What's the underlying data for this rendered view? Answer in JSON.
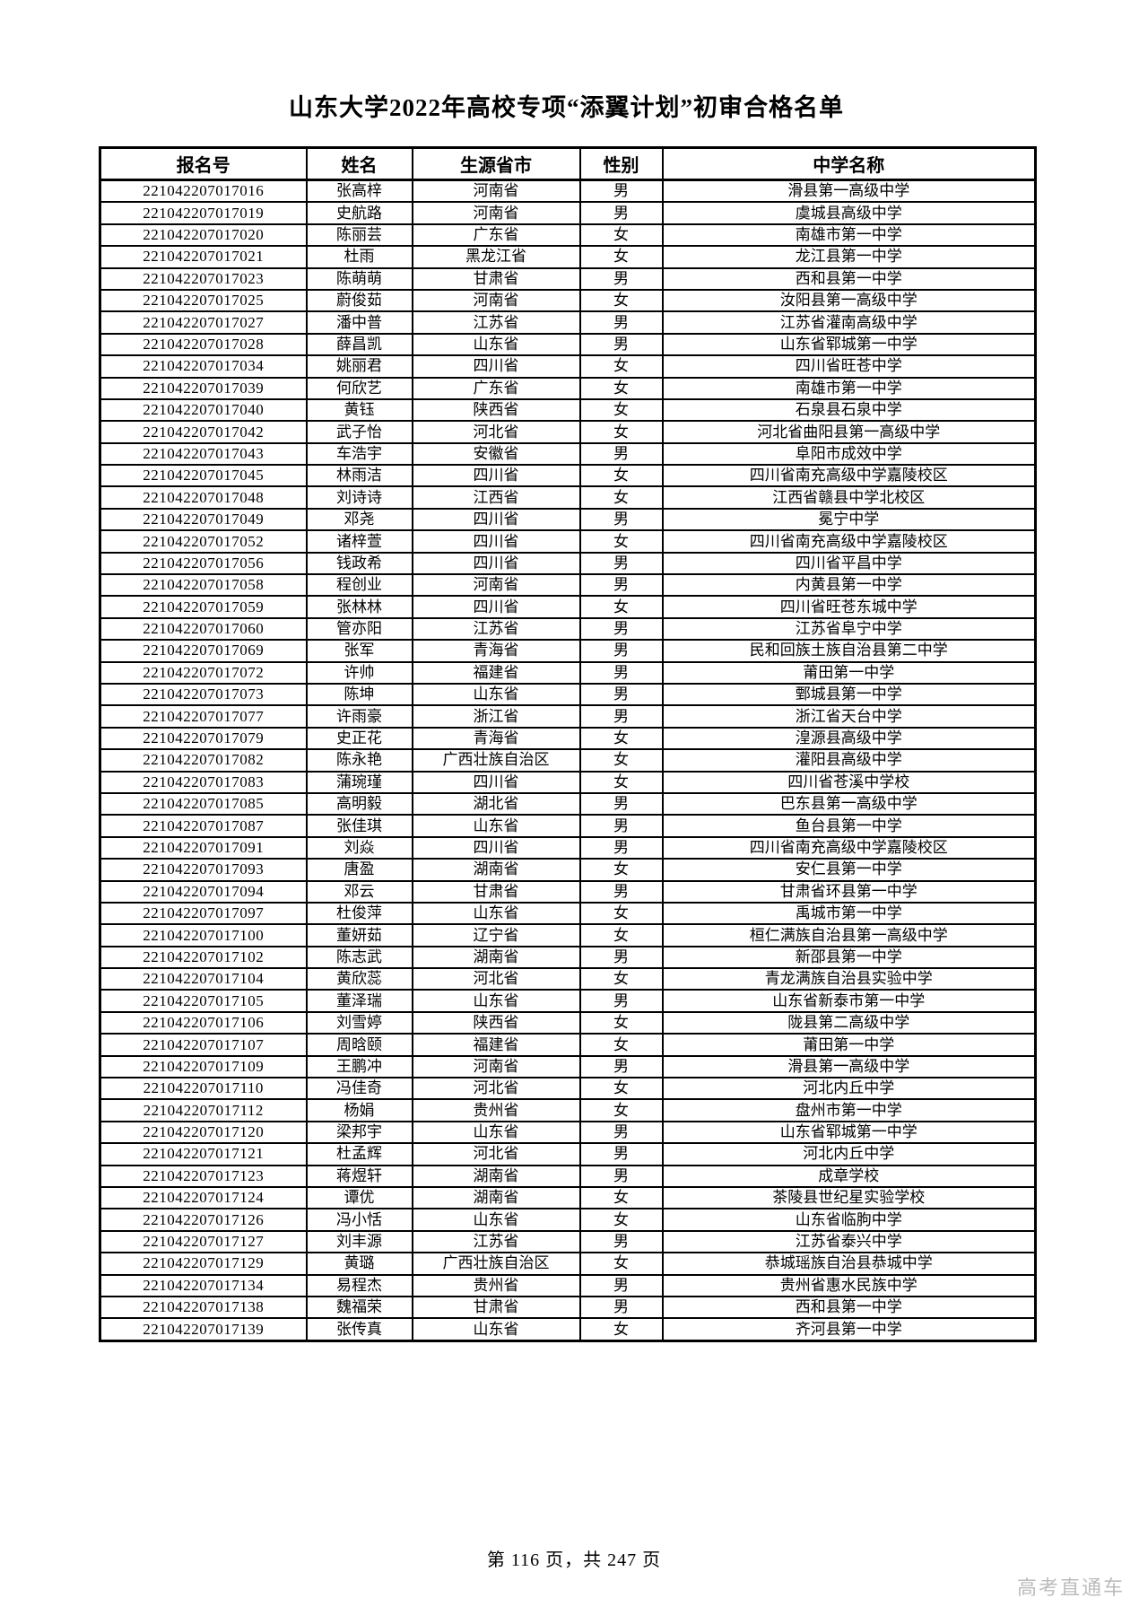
{
  "title": "山东大学2022年高校专项“添翼计划”初审合格名单",
  "table": {
    "headers": [
      "报名号",
      "姓名",
      "生源省市",
      "性别",
      "中学名称"
    ],
    "rows": [
      [
        "221042207017016",
        "张高梓",
        "河南省",
        "男",
        "滑县第一高级中学"
      ],
      [
        "221042207017019",
        "史航路",
        "河南省",
        "男",
        "虞城县高级中学"
      ],
      [
        "221042207017020",
        "陈丽芸",
        "广东省",
        "女",
        "南雄市第一中学"
      ],
      [
        "221042207017021",
        "杜雨",
        "黑龙江省",
        "女",
        "龙江县第一中学"
      ],
      [
        "221042207017023",
        "陈萌萌",
        "甘肃省",
        "男",
        "西和县第一中学"
      ],
      [
        "221042207017025",
        "蔚俊茹",
        "河南省",
        "女",
        "汝阳县第一高级中学"
      ],
      [
        "221042207017027",
        "潘中普",
        "江苏省",
        "男",
        "江苏省灌南高级中学"
      ],
      [
        "221042207017028",
        "薛昌凯",
        "山东省",
        "男",
        "山东省郓城第一中学"
      ],
      [
        "221042207017034",
        "姚丽君",
        "四川省",
        "女",
        "四川省旺苍中学"
      ],
      [
        "221042207017039",
        "何欣艺",
        "广东省",
        "女",
        "南雄市第一中学"
      ],
      [
        "221042207017040",
        "黄钰",
        "陕西省",
        "女",
        "石泉县石泉中学"
      ],
      [
        "221042207017042",
        "武子怡",
        "河北省",
        "女",
        "河北省曲阳县第一高级中学"
      ],
      [
        "221042207017043",
        "车浩宇",
        "安徽省",
        "男",
        "阜阳市成效中学"
      ],
      [
        "221042207017045",
        "林雨洁",
        "四川省",
        "女",
        "四川省南充高级中学嘉陵校区"
      ],
      [
        "221042207017048",
        "刘诗诗",
        "江西省",
        "女",
        "江西省赣县中学北校区"
      ],
      [
        "221042207017049",
        "邓尧",
        "四川省",
        "男",
        "冕宁中学"
      ],
      [
        "221042207017052",
        "诸梓萱",
        "四川省",
        "女",
        "四川省南充高级中学嘉陵校区"
      ],
      [
        "221042207017056",
        "钱政希",
        "四川省",
        "男",
        "四川省平昌中学"
      ],
      [
        "221042207017058",
        "程创业",
        "河南省",
        "男",
        "内黄县第一中学"
      ],
      [
        "221042207017059",
        "张林林",
        "四川省",
        "女",
        "四川省旺苍东城中学"
      ],
      [
        "221042207017060",
        "管亦阳",
        "江苏省",
        "男",
        "江苏省阜宁中学"
      ],
      [
        "221042207017069",
        "张军",
        "青海省",
        "男",
        "民和回族土族自治县第二中学"
      ],
      [
        "221042207017072",
        "许帅",
        "福建省",
        "男",
        "莆田第一中学"
      ],
      [
        "221042207017073",
        "陈坤",
        "山东省",
        "男",
        "鄄城县第一中学"
      ],
      [
        "221042207017077",
        "许雨豪",
        "浙江省",
        "男",
        "浙江省天台中学"
      ],
      [
        "221042207017079",
        "史正花",
        "青海省",
        "女",
        "湟源县高级中学"
      ],
      [
        "221042207017082",
        "陈永艳",
        "广西壮族自治区",
        "女",
        "灌阳县高级中学"
      ],
      [
        "221042207017083",
        "蒲琬瑾",
        "四川省",
        "女",
        "四川省苍溪中学校"
      ],
      [
        "221042207017085",
        "高明毅",
        "湖北省",
        "男",
        "巴东县第一高级中学"
      ],
      [
        "221042207017087",
        "张佳琪",
        "山东省",
        "男",
        "鱼台县第一中学"
      ],
      [
        "221042207017091",
        "刘焱",
        "四川省",
        "男",
        "四川省南充高级中学嘉陵校区"
      ],
      [
        "221042207017093",
        "唐盈",
        "湖南省",
        "女",
        "安仁县第一中学"
      ],
      [
        "221042207017094",
        "邓云",
        "甘肃省",
        "男",
        "甘肃省环县第一中学"
      ],
      [
        "221042207017097",
        "杜俊萍",
        "山东省",
        "女",
        "禹城市第一中学"
      ],
      [
        "221042207017100",
        "董妍茹",
        "辽宁省",
        "女",
        "桓仁满族自治县第一高级中学"
      ],
      [
        "221042207017102",
        "陈志武",
        "湖南省",
        "男",
        "新邵县第一中学"
      ],
      [
        "221042207017104",
        "黄欣蕊",
        "河北省",
        "女",
        "青龙满族自治县实验中学"
      ],
      [
        "221042207017105",
        "董泽瑞",
        "山东省",
        "男",
        "山东省新泰市第一中学"
      ],
      [
        "221042207017106",
        "刘雪婷",
        "陕西省",
        "女",
        "陇县第二高级中学"
      ],
      [
        "221042207017107",
        "周晗颐",
        "福建省",
        "女",
        "莆田第一中学"
      ],
      [
        "221042207017109",
        "王鹏冲",
        "河南省",
        "男",
        "滑县第一高级中学"
      ],
      [
        "221042207017110",
        "冯佳奇",
        "河北省",
        "女",
        "河北内丘中学"
      ],
      [
        "221042207017112",
        "杨娟",
        "贵州省",
        "女",
        "盘州市第一中学"
      ],
      [
        "221042207017120",
        "梁邦宇",
        "山东省",
        "男",
        "山东省郓城第一中学"
      ],
      [
        "221042207017121",
        "杜孟辉",
        "河北省",
        "男",
        "河北内丘中学"
      ],
      [
        "221042207017123",
        "蒋煜轩",
        "湖南省",
        "男",
        "成章学校"
      ],
      [
        "221042207017124",
        "谭优",
        "湖南省",
        "女",
        "茶陵县世纪星实验学校"
      ],
      [
        "221042207017126",
        "冯小恬",
        "山东省",
        "女",
        "山东省临朐中学"
      ],
      [
        "221042207017127",
        "刘丰源",
        "江苏省",
        "男",
        "江苏省泰兴中学"
      ],
      [
        "221042207017129",
        "黄璐",
        "广西壮族自治区",
        "女",
        "恭城瑶族自治县恭城中学"
      ],
      [
        "221042207017134",
        "易程杰",
        "贵州省",
        "男",
        "贵州省惠水民族中学"
      ],
      [
        "221042207017138",
        "魏福荣",
        "甘肃省",
        "男",
        "西和县第一中学"
      ],
      [
        "221042207017139",
        "张传真",
        "山东省",
        "女",
        "齐河县第一中学"
      ]
    ]
  },
  "footer": {
    "page_indicator": "第 116 页，共 247 页"
  },
  "watermark": "高考直通车"
}
